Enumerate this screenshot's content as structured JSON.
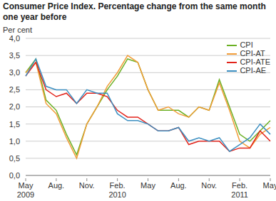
{
  "chart_data": {
    "type": "line",
    "title": "Consumer Price Index. Percentage change from the same month one year before",
    "y_label": "Per cent",
    "categories": [
      "May 2009",
      null,
      null,
      "Aug.",
      null,
      null,
      "Nov.",
      null,
      null,
      "Feb. 2010",
      null,
      null,
      "May",
      null,
      null,
      "Aug.",
      null,
      null,
      "Nov.",
      null,
      null,
      "Feb. 2011",
      null,
      null,
      "May"
    ],
    "series": [
      {
        "name": "CPI",
        "color": "#6ab023",
        "values": [
          3.0,
          3.4,
          2.2,
          1.9,
          1.2,
          0.6,
          1.5,
          2.0,
          2.5,
          2.9,
          3.4,
          3.3,
          2.5,
          1.9,
          1.9,
          1.9,
          1.7,
          2.0,
          1.9,
          2.8,
          2.0,
          1.2,
          1.0,
          1.3,
          1.6
        ]
      },
      {
        "name": "CPI-AT",
        "color": "#f29d38",
        "values": [
          3.0,
          3.3,
          2.1,
          1.8,
          1.1,
          0.5,
          1.5,
          2.0,
          2.6,
          3.0,
          3.5,
          3.3,
          2.5,
          1.9,
          2.0,
          1.8,
          1.7,
          2.0,
          1.9,
          2.7,
          1.9,
          1.0,
          0.8,
          1.2,
          1.4
        ]
      },
      {
        "name": "CPI-ATE",
        "color": "#e2231a",
        "values": [
          2.9,
          3.3,
          2.5,
          2.3,
          2.4,
          2.1,
          2.4,
          2.4,
          2.3,
          1.9,
          1.7,
          1.7,
          1.5,
          1.3,
          1.3,
          1.4,
          0.9,
          1.0,
          1.0,
          1.0,
          0.7,
          0.8,
          0.8,
          1.3,
          1.0
        ]
      },
      {
        "name": "CPI-AE",
        "color": "#3c8fc1",
        "values": [
          2.9,
          3.4,
          2.6,
          2.5,
          2.5,
          2.1,
          2.5,
          2.4,
          2.4,
          1.8,
          1.6,
          1.6,
          1.5,
          1.3,
          1.3,
          1.4,
          1.0,
          1.1,
          1.0,
          1.1,
          0.7,
          0.9,
          1.1,
          1.5,
          1.2
        ]
      }
    ],
    "ylim": [
      0,
      4
    ],
    "yticks": [
      {
        "value": 0,
        "label": "0,0"
      },
      {
        "value": 0.5,
        "label": "0,5"
      },
      {
        "value": 1,
        "label": "1,0"
      },
      {
        "value": 1.5,
        "label": "1,5"
      },
      {
        "value": 2,
        "label": "2,0"
      },
      {
        "value": 2.5,
        "label": "2,5"
      },
      {
        "value": 3,
        "label": "3,0"
      },
      {
        "value": 3.5,
        "label": "3,5"
      },
      {
        "value": 4,
        "label": "4,0"
      }
    ],
    "grid": true,
    "legend": "upper right"
  }
}
